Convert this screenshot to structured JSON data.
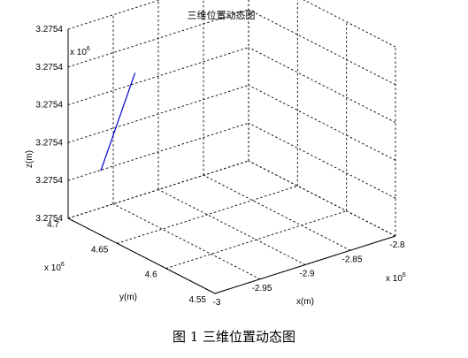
{
  "chart_data": {
    "type": "line",
    "title": "三维位置动态图",
    "xlabel": "x(m)",
    "ylabel": "y(m)",
    "zlabel": "z(m)",
    "x_scale_note": "x 10",
    "x_scale_exp": "6",
    "y_scale_note": "x 10",
    "y_scale_exp": "6",
    "z_scale_note": "x 10",
    "z_scale_exp": "6",
    "xlim": [
      -3.0,
      -2.8
    ],
    "ylim": [
      4.55,
      4.7
    ],
    "zlim": [
      0,
      5
    ],
    "x_ticks": [
      -3.0,
      -2.95,
      -2.9,
      -2.85,
      -2.8
    ],
    "x_tick_labels": [
      "-3",
      "-2.95",
      "-2.9",
      "-2.85",
      "-2.8"
    ],
    "y_ticks": [
      4.55,
      4.6,
      4.65,
      4.7
    ],
    "y_tick_labels": [
      "4.55",
      "4.6",
      "4.65",
      "4.7"
    ],
    "z_ticks": [
      0,
      1,
      2,
      3,
      4,
      5
    ],
    "z_tick_labels": [
      "3.2754",
      "3.2754",
      "3.2754",
      "3.2754",
      "3.2754",
      "3.2754"
    ],
    "grid": true,
    "series": [
      {
        "color": "#0000cc",
        "x": [
          -2.985,
          -2.947
        ],
        "y": [
          4.6805,
          4.6805
        ],
        "z": [
          1.4,
          3.7
        ]
      }
    ]
  },
  "caption": "图 1  三维位置动态图"
}
